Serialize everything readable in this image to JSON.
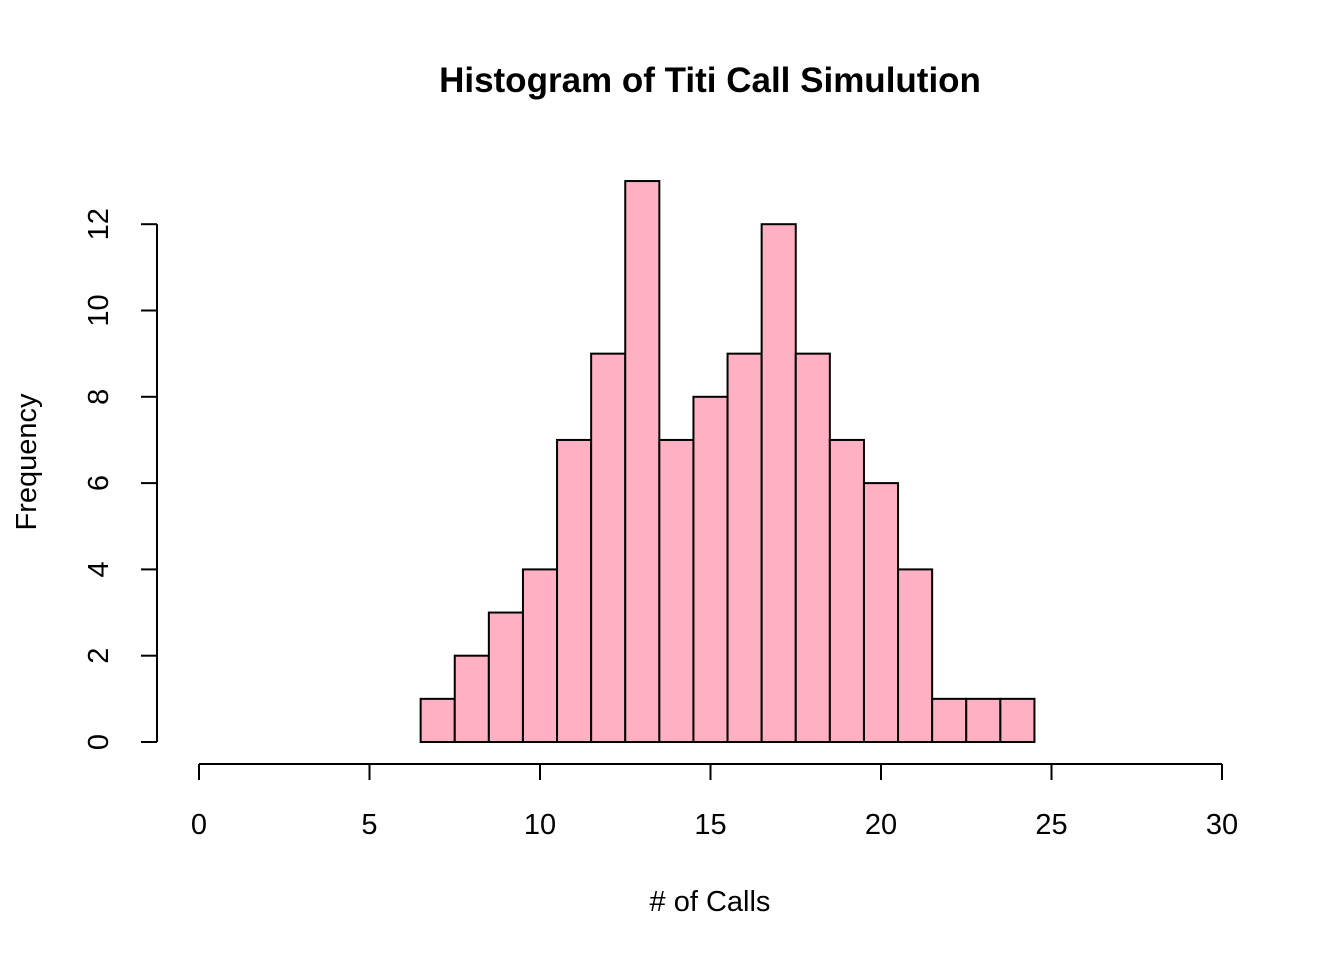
{
  "chart_data": {
    "type": "bar",
    "title": "Histogram of Titi Call Simulution",
    "xlabel": "# of Calls",
    "ylabel": "Frequency",
    "bin_width": 1,
    "bin_centers": [
      1,
      2,
      3,
      4,
      5,
      6,
      7,
      8,
      9,
      10,
      11,
      12,
      13,
      14,
      15,
      16,
      17,
      18,
      19,
      20,
      21,
      22,
      23,
      24,
      25,
      26,
      27,
      28,
      29,
      30
    ],
    "values": [
      0,
      0,
      0,
      0,
      0,
      0,
      1,
      2,
      3,
      4,
      7,
      9,
      13,
      7,
      8,
      9,
      12,
      9,
      7,
      6,
      4,
      1,
      1,
      1,
      0,
      0,
      0,
      0,
      0,
      0
    ],
    "xlim": [
      0,
      30
    ],
    "ylim": [
      0,
      13
    ],
    "x_ticks": [
      "0",
      "5",
      "10",
      "15",
      "20",
      "25",
      "30"
    ],
    "y_ticks": [
      "0",
      "2",
      "4",
      "6",
      "8",
      "10",
      "12"
    ],
    "bar_color": "#FFB0C2",
    "grid": false
  }
}
